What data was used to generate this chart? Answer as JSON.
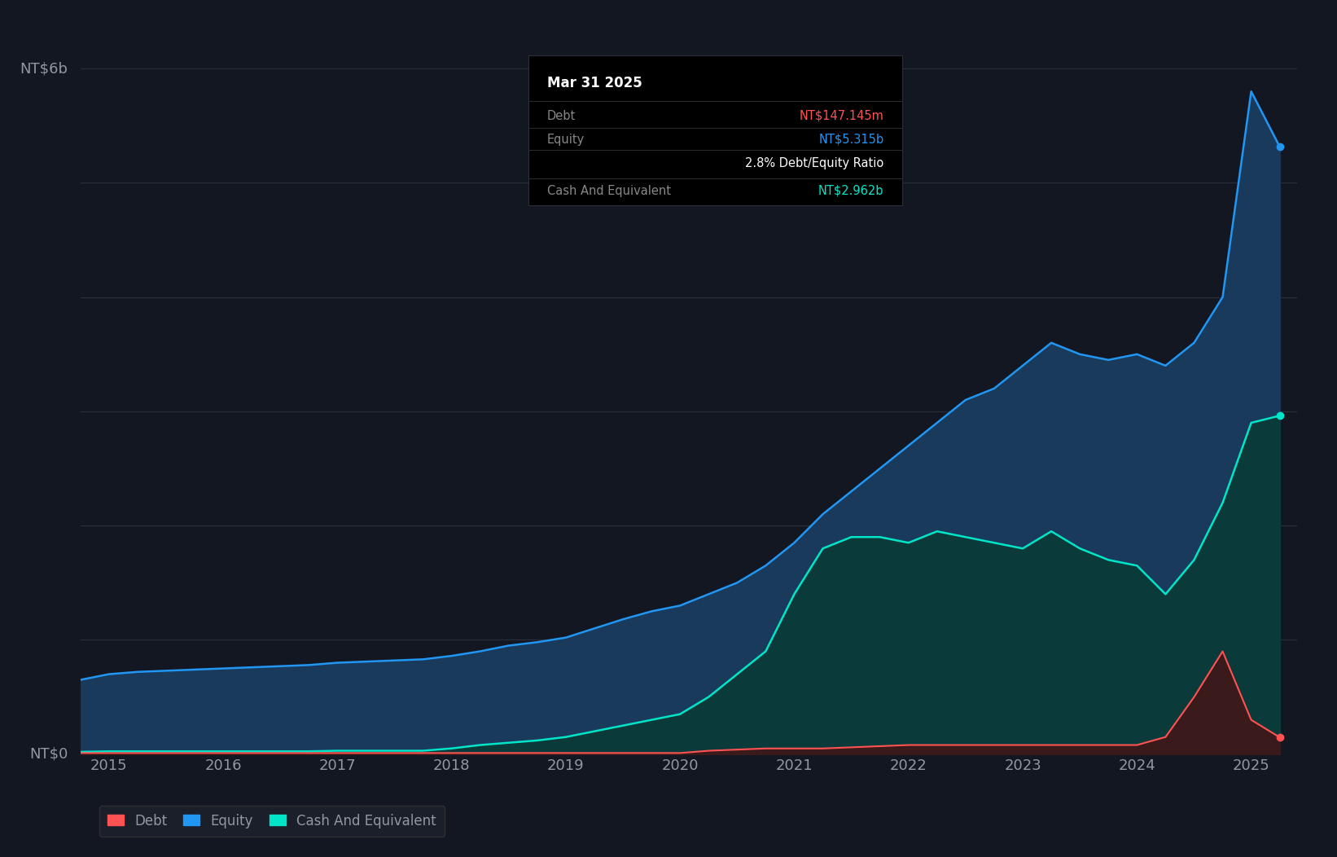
{
  "bg_color": "#131722",
  "plot_bg_color": "#131722",
  "grid_color": "#2a2e3a",
  "title_color": "#ffffff",
  "axis_label_color": "#9098a1",
  "tick_color": "#9098a1",
  "equity_color": "#2196f3",
  "equity_fill": "#1a3a5c",
  "cash_color": "#00e5c8",
  "cash_fill": "#0a3a3a",
  "debt_color": "#ff5252",
  "debt_fill": "#3a1a1a",
  "ylabel_text": "NT$6b",
  "y0_text": "NT$0",
  "ylim": [
    0,
    6000000000
  ],
  "tooltip": {
    "date": "Mar 31 2025",
    "debt_label": "Debt",
    "debt_value": "NT$147.145m",
    "debt_color": "#ff5252",
    "equity_label": "Equity",
    "equity_value": "NT$5.315b",
    "equity_color": "#2196f3",
    "ratio_text": "2.8% Debt/Equity Ratio",
    "cash_label": "Cash And Equivalent",
    "cash_value": "NT$2.962b",
    "cash_color": "#00e5c8",
    "bg": "#000000",
    "border": "#333333"
  },
  "legend": [
    {
      "label": "Debt",
      "color": "#ff5252"
    },
    {
      "label": "Equity",
      "color": "#2196f3"
    },
    {
      "label": "Cash And Equivalent",
      "color": "#00e5c8"
    }
  ],
  "dates": [
    2014.75,
    2015.0,
    2015.25,
    2015.5,
    2015.75,
    2016.0,
    2016.25,
    2016.5,
    2016.75,
    2017.0,
    2017.25,
    2017.5,
    2017.75,
    2018.0,
    2018.25,
    2018.5,
    2018.75,
    2019.0,
    2019.25,
    2019.5,
    2019.75,
    2020.0,
    2020.25,
    2020.5,
    2020.75,
    2021.0,
    2021.25,
    2021.5,
    2021.75,
    2022.0,
    2022.25,
    2022.5,
    2022.75,
    2023.0,
    2023.25,
    2023.5,
    2023.75,
    2024.0,
    2024.25,
    2024.5,
    2024.75,
    2025.0,
    2025.25
  ],
  "equity": [
    650000000,
    700000000,
    720000000,
    730000000,
    740000000,
    750000000,
    760000000,
    770000000,
    780000000,
    800000000,
    810000000,
    820000000,
    830000000,
    860000000,
    900000000,
    950000000,
    980000000,
    1020000000,
    1100000000,
    1180000000,
    1250000000,
    1300000000,
    1400000000,
    1500000000,
    1650000000,
    1850000000,
    2100000000,
    2300000000,
    2500000000,
    2700000000,
    2900000000,
    3100000000,
    3200000000,
    3400000000,
    3600000000,
    3500000000,
    3450000000,
    3500000000,
    3400000000,
    3600000000,
    4000000000,
    5800000000,
    5315000000
  ],
  "cash": [
    20000000,
    25000000,
    25000000,
    25000000,
    25000000,
    25000000,
    25000000,
    25000000,
    25000000,
    30000000,
    30000000,
    30000000,
    30000000,
    50000000,
    80000000,
    100000000,
    120000000,
    150000000,
    200000000,
    250000000,
    300000000,
    350000000,
    500000000,
    700000000,
    900000000,
    1400000000,
    1800000000,
    1900000000,
    1900000000,
    1850000000,
    1950000000,
    1900000000,
    1850000000,
    1800000000,
    1950000000,
    1800000000,
    1700000000,
    1650000000,
    1400000000,
    1700000000,
    2200000000,
    2900000000,
    2962000000
  ],
  "debt": [
    10000000,
    10000000,
    10000000,
    10000000,
    10000000,
    10000000,
    10000000,
    10000000,
    10000000,
    10000000,
    10000000,
    10000000,
    10000000,
    10000000,
    10000000,
    10000000,
    10000000,
    10000000,
    10000000,
    10000000,
    10000000,
    10000000,
    30000000,
    40000000,
    50000000,
    50000000,
    50000000,
    60000000,
    70000000,
    80000000,
    80000000,
    80000000,
    80000000,
    80000000,
    80000000,
    80000000,
    80000000,
    80000000,
    150000000,
    500000000,
    900000000,
    300000000,
    147145000
  ],
  "xticks": [
    2015,
    2016,
    2017,
    2018,
    2019,
    2020,
    2021,
    2022,
    2023,
    2024,
    2025
  ],
  "xtick_labels": [
    "2015",
    "2016",
    "2017",
    "2018",
    "2019",
    "2020",
    "2021",
    "2022",
    "2023",
    "2024",
    "2025"
  ]
}
